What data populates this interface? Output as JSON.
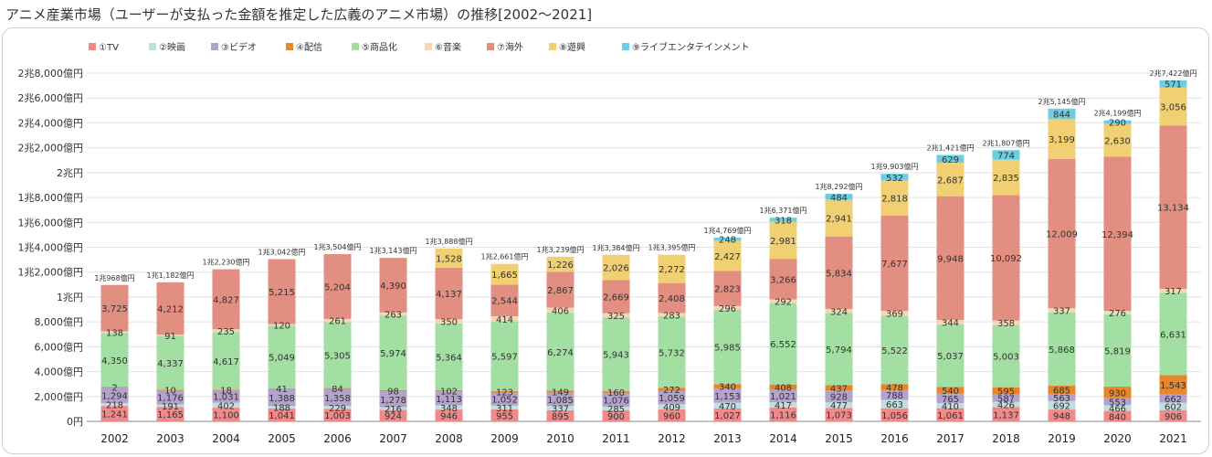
{
  "page": {
    "title": "アニメ産業市場（ユーザーが支払った金額を推定した広義のアニメ市場）の推移[2002〜2021]"
  },
  "chart_data": {
    "type": "bar",
    "stacked": true,
    "title": "アニメ産業市場（ユーザーが支払った金額を推定した広義のアニメ市場）の推移[2002〜2021]",
    "categories": [
      "2002",
      "2003",
      "2004",
      "2005",
      "2006",
      "2007",
      "2008",
      "2009",
      "2010",
      "2011",
      "2012",
      "2013",
      "2014",
      "2015",
      "2016",
      "2017",
      "2018",
      "2019",
      "2020",
      "2021"
    ],
    "series": [
      {
        "name": "①TV",
        "color": "#f08a8a",
        "values": [
          1241,
          1165,
          1100,
          1041,
          1003,
          924,
          946,
          955,
          895,
          900,
          960,
          1027,
          1116,
          1073,
          1056,
          1061,
          1137,
          948,
          840,
          906
        ]
      },
      {
        "name": "②映画",
        "color": "#bfe0de",
        "values": [
          218,
          191,
          402,
          188,
          229,
          216,
          348,
          311,
          337,
          285,
          409,
          470,
          417,
          477,
          663,
          410,
          426,
          692,
          466,
          602
        ]
      },
      {
        "name": "③ビデオ",
        "color": "#b3a2cc",
        "values": [
          1294,
          1176,
          1031,
          1388,
          1358,
          1278,
          1113,
          1052,
          1085,
          1076,
          1059,
          1153,
          1021,
          928,
          788,
          765,
          587,
          563,
          553,
          662
        ]
      },
      {
        "name": "④配信",
        "color": "#e8862c",
        "values": [
          2,
          10,
          18,
          41,
          84,
          98,
          102,
          123,
          149,
          160,
          272,
          340,
          408,
          437,
          478,
          540,
          595,
          685,
          930,
          1543
        ]
      },
      {
        "name": "⑤商品化",
        "color": "#a3dea3",
        "values": [
          4350,
          4337,
          4617,
          5049,
          5305,
          5974,
          5364,
          5597,
          6274,
          5943,
          5732,
          5985,
          6552,
          5794,
          5522,
          5037,
          5003,
          5868,
          5819,
          6631
        ]
      },
      {
        "name": "⑥音楽",
        "color": "#f4d7b4",
        "values": [
          138,
          91,
          235,
          120,
          261,
          263,
          350,
          414,
          406,
          325,
          283,
          296,
          292,
          324,
          369,
          344,
          358,
          337,
          276,
          317
        ]
      },
      {
        "name": "⑦海外",
        "color": "#e28e80",
        "values": [
          3725,
          4212,
          4827,
          5215,
          5204,
          4390,
          4137,
          2544,
          2867,
          2669,
          2408,
          2823,
          3266,
          5834,
          7677,
          9948,
          10092,
          12009,
          12394,
          13134
        ]
      },
      {
        "name": "⑧遊興",
        "color": "#f0d072",
        "values": [
          0,
          0,
          0,
          0,
          0,
          0,
          1528,
          1665,
          1226,
          2026,
          2272,
          2427,
          2981,
          2941,
          2818,
          2687,
          2835,
          3199,
          2630,
          3056
        ]
      },
      {
        "name": "⑨ライブエンタテインメント",
        "color": "#6ccee0",
        "values": [
          0,
          0,
          0,
          0,
          0,
          0,
          0,
          0,
          0,
          0,
          0,
          248,
          318,
          484,
          532,
          629,
          774,
          844,
          290,
          571
        ]
      }
    ],
    "segment_labels": [
      [
        "1,241",
        "1,165",
        "1,100",
        "1,041",
        "1,003",
        "924",
        "946",
        "955",
        "895",
        "900",
        "960",
        "1,027",
        "1,116",
        "1,073",
        "1,056",
        "1,061",
        "1,137",
        "948",
        "840",
        "906"
      ],
      [
        "218",
        "191",
        "402",
        "188",
        "229",
        "216",
        "348",
        "311",
        "337",
        "285",
        "409",
        "470",
        "417",
        "477",
        "663",
        "410",
        "426",
        "692",
        "466",
        "602"
      ],
      [
        "1,294",
        "1,176",
        "1,031",
        "1,388",
        "1,358",
        "1,278",
        "1,113",
        "1,052",
        "1,085",
        "1,076",
        "1,059",
        "1,153",
        "1,021",
        "928",
        "788",
        "765",
        "587",
        "563",
        "553",
        "662"
      ],
      [
        "2",
        "10",
        "18",
        "41",
        "84",
        "98",
        "102",
        "123",
        "149",
        "160",
        "272",
        "340",
        "408",
        "437",
        "478",
        "540",
        "595",
        "685",
        "930",
        "1,543"
      ],
      [
        "4,350",
        "4,337",
        "4,617",
        "5,049",
        "5,305",
        "5,974",
        "5,364",
        "5,597",
        "6,274",
        "5,943",
        "5,732",
        "5,985",
        "6,552",
        "5,794",
        "5,522",
        "5,037",
        "5,003",
        "5,868",
        "5,819",
        "6,631"
      ],
      [
        "138",
        "91",
        "235",
        "120",
        "261",
        "263",
        "350",
        "414",
        "406",
        "325",
        "283",
        "296",
        "292",
        "324",
        "369",
        "344",
        "358",
        "337",
        "276",
        "317"
      ],
      [
        "3,725",
        "4,212",
        "4,827",
        "5,215",
        "5,204",
        "4,390",
        "4,137",
        "2,544",
        "2,867",
        "2,669",
        "2,408",
        "2,823",
        "3,266",
        "5,834",
        "7,677",
        "9,948",
        "10,092",
        "12,009",
        "12,394",
        "13,134"
      ],
      [
        "",
        "",
        "",
        "",
        "",
        "",
        "1,528",
        "1,665",
        "1,226",
        "2,026",
        "2,272",
        "2,427",
        "2,981",
        "2,941",
        "2,818",
        "2,687",
        "2,835",
        "3,199",
        "2,630",
        "3,056"
      ],
      [
        "",
        "",
        "",
        "",
        "",
        "",
        "",
        "",
        "",
        "",
        "",
        "248",
        "318",
        "484",
        "532",
        "629",
        "774",
        "844",
        "290",
        "571"
      ]
    ],
    "totals": [
      10968,
      11182,
      12230,
      13042,
      13504,
      13143,
      13888,
      12661,
      13239,
      13384,
      13395,
      14769,
      16371,
      18292,
      19903,
      21421,
      21807,
      25145,
      24199,
      27422
    ],
    "total_labels": [
      "1兆968億円",
      "1兆1,182億円",
      "1兆2,230億円",
      "1兆3,042億円",
      "1兆3,504億円",
      "1兆3,143億円",
      "1兆3,888億円",
      "1兆2,661億円",
      "1兆3,239億円",
      "1兆3,384億円",
      "1兆3,395億円",
      "1兆4,769億円",
      "1兆6,371億円",
      "1兆8,292億円",
      "1兆9,903億円",
      "2兆1,421億円",
      "2兆1,807億円",
      "2兆5,145億円",
      "2兆4,199億円",
      "2兆7,422億円"
    ],
    "ylim": [
      0,
      28000
    ],
    "yticks": [
      0,
      2000,
      4000,
      6000,
      8000,
      10000,
      12000,
      14000,
      16000,
      18000,
      20000,
      22000,
      24000,
      26000,
      28000
    ],
    "ytick_labels": [
      "0円",
      "2,000億円",
      "4,000億円",
      "6,000億円",
      "8,000億円",
      "1兆円",
      "1兆2,000億円",
      "1兆4,000億円",
      "1兆6,000億円",
      "1兆8,000億円",
      "2兆円",
      "2兆2,000億円",
      "2兆4,000億円",
      "2兆6,000億円",
      "2兆8,000億円"
    ],
    "xlabel": "",
    "ylabel": "",
    "grid": true,
    "legend_position": "top-left"
  }
}
